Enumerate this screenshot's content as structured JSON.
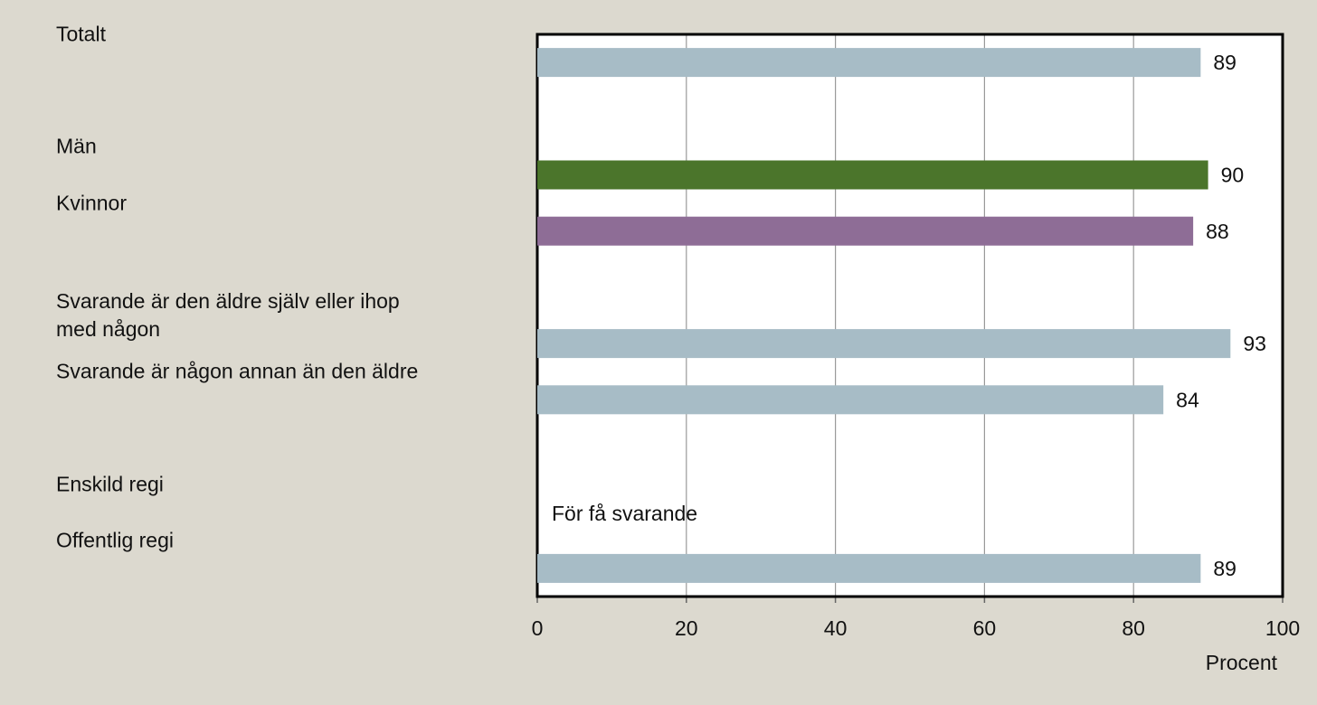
{
  "chart_data": {
    "type": "barh",
    "categories": [
      "Totalt",
      null,
      "Män",
      "Kvinnor",
      null,
      "Svarande är den äldre själv eller ihop med någon",
      "Svarande är någon annan än den äldre",
      null,
      "Enskild regi",
      "Offentlig regi"
    ],
    "values": [
      89,
      null,
      90,
      88,
      null,
      93,
      84,
      null,
      null,
      89
    ],
    "colors": [
      "#a7bcc6",
      null,
      "#4b752b",
      "#8e6d96",
      null,
      "#a7bcc6",
      "#a7bcc6",
      null,
      null,
      "#a7bcc6"
    ],
    "annotation": "För få svarande",
    "xlim": [
      0,
      100
    ],
    "xticks": [
      0,
      20,
      40,
      60,
      80,
      100
    ],
    "xlabel": "Procent",
    "grid": true
  }
}
